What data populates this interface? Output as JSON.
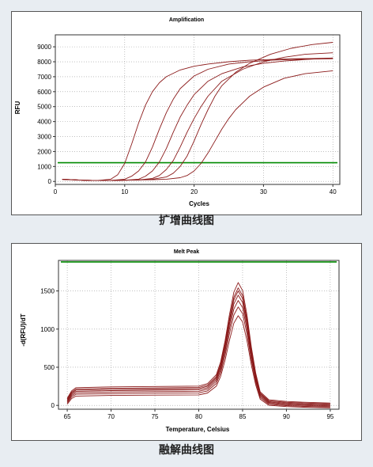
{
  "chart_data": [
    {
      "type": "line",
      "title": "Amplification",
      "xlabel": "Cycles",
      "ylabel": "RFU",
      "xlim": [
        0,
        41
      ],
      "ylim": [
        -200,
        9800
      ],
      "xticks": [
        0,
        10,
        20,
        30,
        40
      ],
      "yticks": [
        0,
        1000,
        2000,
        3000,
        4000,
        5000,
        6000,
        7000,
        8000,
        9000
      ],
      "grid": true,
      "line_color": "#8b1a1a",
      "threshold": {
        "value": 1250,
        "color": "#008a00"
      },
      "series": [
        {
          "x": [
            1,
            4,
            6,
            8,
            9,
            10,
            11,
            12,
            13,
            14,
            15,
            16,
            18,
            20,
            22,
            25,
            28,
            31,
            34,
            37,
            40
          ],
          "y": [
            150,
            80,
            60,
            150,
            450,
            1200,
            2500,
            3900,
            5100,
            6000,
            6600,
            7000,
            7450,
            7700,
            7850,
            8000,
            8100,
            8150,
            8200,
            8220,
            8250
          ]
        },
        {
          "x": [
            1,
            4,
            6,
            8,
            10,
            11,
            12,
            13,
            14,
            15,
            16,
            17,
            18,
            20,
            22,
            25,
            28,
            31,
            34,
            37,
            40
          ],
          "y": [
            150,
            80,
            60,
            70,
            150,
            350,
            700,
            1300,
            2300,
            3500,
            4600,
            5500,
            6200,
            7050,
            7500,
            7850,
            8000,
            8100,
            8150,
            8180,
            8200
          ]
        },
        {
          "x": [
            1,
            4,
            6,
            8,
            10,
            12,
            13,
            14,
            15,
            16,
            17,
            18,
            19,
            20,
            22,
            24,
            27,
            30,
            33,
            36,
            40
          ],
          "y": [
            150,
            80,
            60,
            70,
            80,
            150,
            350,
            700,
            1300,
            2200,
            3300,
            4300,
            5100,
            5800,
            6700,
            7200,
            7650,
            7900,
            8050,
            8150,
            8250
          ]
        },
        {
          "x": [
            1,
            4,
            6,
            8,
            10,
            12,
            14,
            15,
            16,
            17,
            18,
            19,
            20,
            21,
            22,
            24,
            27,
            30,
            33,
            36,
            40
          ],
          "y": [
            140,
            80,
            60,
            70,
            80,
            100,
            200,
            400,
            800,
            1400,
            2300,
            3300,
            4200,
            5000,
            5700,
            6700,
            7500,
            8000,
            8300,
            8500,
            8600
          ]
        },
        {
          "x": [
            1,
            4,
            6,
            8,
            10,
            12,
            14,
            16,
            17,
            18,
            19,
            20,
            21,
            22,
            23,
            24,
            26,
            28,
            31,
            34,
            37,
            40
          ],
          "y": [
            140,
            80,
            60,
            70,
            80,
            100,
            150,
            300,
            550,
            1000,
            1700,
            2700,
            3800,
            4800,
            5700,
            6400,
            7300,
            7900,
            8500,
            8900,
            9150,
            9300
          ]
        },
        {
          "x": [
            1,
            4,
            6,
            8,
            10,
            12,
            14,
            16,
            18,
            19,
            20,
            21,
            22,
            23,
            24,
            25,
            26,
            28,
            30,
            33,
            36,
            40
          ],
          "y": [
            130,
            80,
            60,
            70,
            80,
            100,
            120,
            150,
            250,
            400,
            700,
            1200,
            1900,
            2700,
            3500,
            4200,
            4800,
            5700,
            6300,
            6900,
            7200,
            7400
          ]
        }
      ]
    },
    {
      "type": "line",
      "title": "Melt Peak",
      "xlabel": "Temperature, Celsius",
      "ylabel": "-d(RFU)/dT",
      "xlim": [
        64,
        96
      ],
      "ylim": [
        -50,
        1900
      ],
      "xticks": [
        65,
        70,
        75,
        80,
        85,
        90,
        95
      ],
      "yticks": [
        0,
        500,
        1000,
        1500
      ],
      "grid": true,
      "line_color": "#8b1a1a",
      "threshold": {
        "value": 1880,
        "color": "#008a00"
      },
      "base_x": [
        65,
        65.5,
        66,
        70,
        75,
        80,
        81,
        82,
        82.5,
        83,
        83.5,
        84,
        84.5,
        85,
        85.5,
        86,
        86.5,
        87,
        88,
        90,
        92,
        95
      ],
      "base_y": [
        70,
        160,
        200,
        210,
        215,
        220,
        250,
        360,
        520,
        780,
        1100,
        1380,
        1500,
        1400,
        1100,
        700,
        380,
        150,
        50,
        30,
        20,
        10
      ],
      "series": [
        {
          "scale": 1.06,
          "offset": 20
        },
        {
          "scale": 1.02,
          "offset": 10
        },
        {
          "scale": 1.0,
          "offset": 0
        },
        {
          "scale": 0.97,
          "offset": -10
        },
        {
          "scale": 0.93,
          "offset": -20
        },
        {
          "scale": 0.88,
          "offset": -30
        },
        {
          "scale": 0.81,
          "offset": -40
        }
      ]
    }
  ],
  "captions": {
    "amplification": "扩增曲线图",
    "melt": "融解曲线图"
  }
}
